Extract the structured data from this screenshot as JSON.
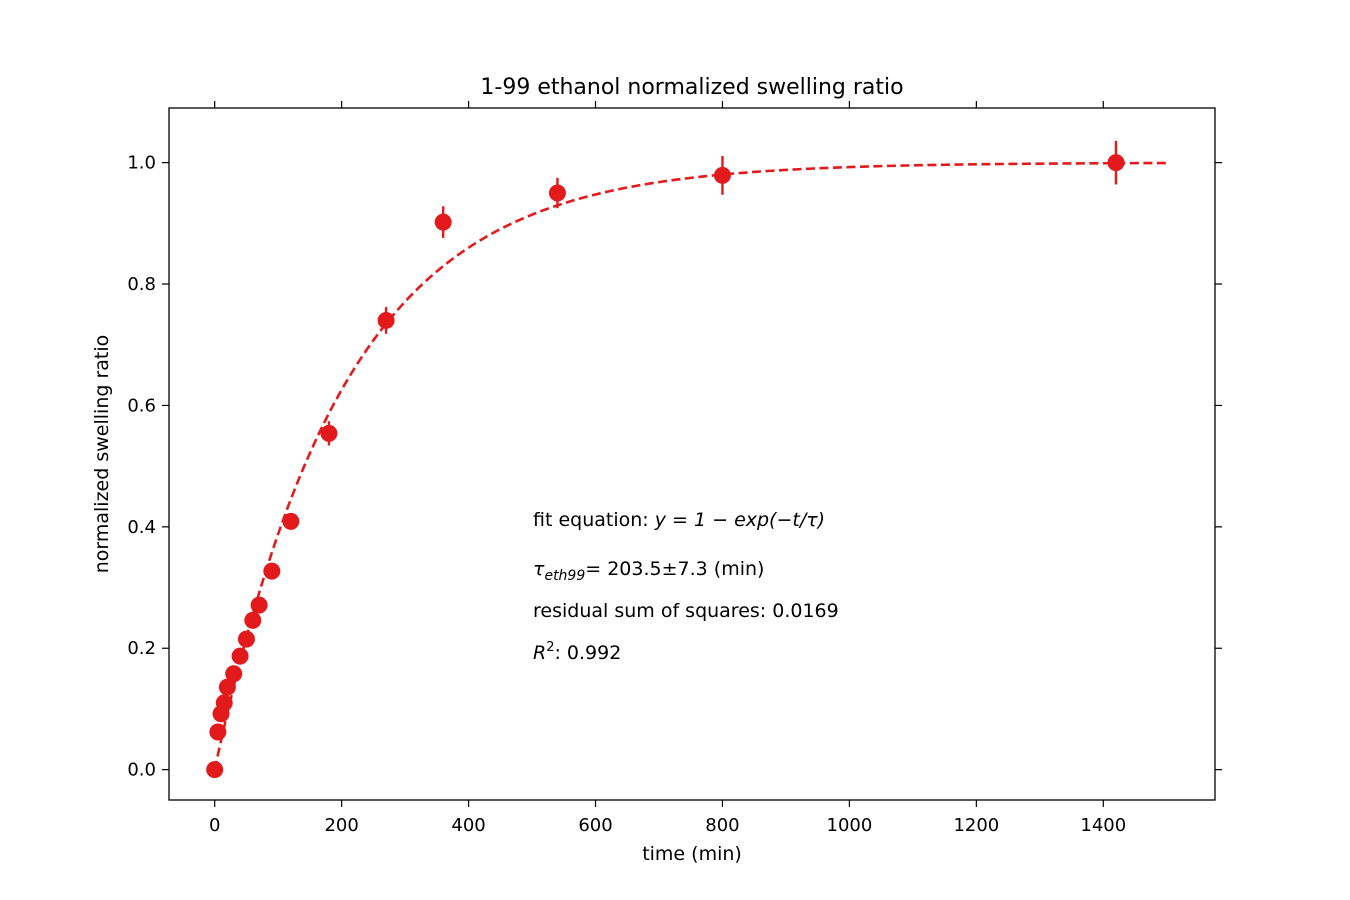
{
  "chart_data": {
    "type": "scatter",
    "title": "1-99 ethanol normalized swelling ratio",
    "xlabel": "time (min)",
    "ylabel": "normalized swelling ratio",
    "xlim": [
      -72,
      1576
    ],
    "ylim": [
      -0.05,
      1.09
    ],
    "x_ticks": [
      0,
      200,
      400,
      600,
      800,
      1000,
      1200,
      1400
    ],
    "x_tick_labels": [
      "0",
      "200",
      "400",
      "600",
      "800",
      "1000",
      "1200",
      "1400"
    ],
    "y_ticks": [
      0.0,
      0.2,
      0.4,
      0.6,
      0.8,
      1.0
    ],
    "y_tick_labels": [
      "0.0",
      "0.2",
      "0.4",
      "0.6",
      "0.8",
      "1.0"
    ],
    "grid": false,
    "color": "#e31a1c",
    "series": [
      {
        "name": "data",
        "kind": "points-with-errorbars",
        "x": [
          0,
          5,
          10,
          15,
          20,
          30,
          40,
          50,
          60,
          70,
          90,
          120,
          180,
          270,
          360,
          540,
          800,
          1420
        ],
        "y": [
          0.0,
          0.062,
          0.092,
          0.11,
          0.136,
          0.158,
          0.187,
          0.215,
          0.246,
          0.271,
          0.327,
          0.409,
          0.554,
          0.74,
          0.902,
          0.95,
          0.979,
          1.0
        ],
        "yerr": [
          0.0,
          0.012,
          0.01,
          0.012,
          0.01,
          0.01,
          0.01,
          0.01,
          0.01,
          0.01,
          0.012,
          0.012,
          0.02,
          0.022,
          0.026,
          0.025,
          0.032,
          0.036
        ]
      },
      {
        "name": "fit",
        "kind": "dashed-line",
        "equation": "y = 1 - exp(-t/tau)",
        "tau": 203.5,
        "x_range": [
          0,
          1500
        ]
      }
    ],
    "annotations": {
      "fit_prefix": "fit equation: ",
      "fit_formula": "y = 1 − exp(−t/τ)",
      "tau_symbol": "τ",
      "tau_subscript": "eth99",
      "tau_value": "= 203.5±7.3 (min)",
      "rss": "residual sum of squares: 0.0169",
      "r2_symbol": "R",
      "r2_sup": "2",
      "r2_value": ": 0.992"
    }
  }
}
